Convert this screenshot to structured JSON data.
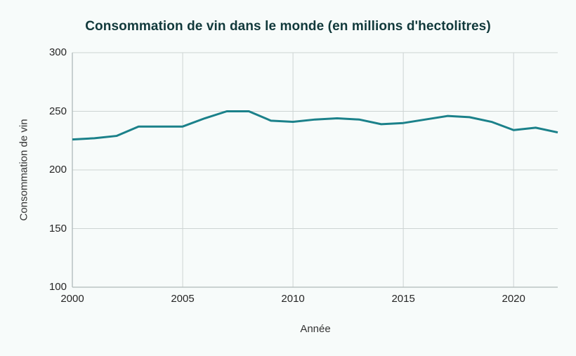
{
  "page": {
    "background": "#f7fbfa"
  },
  "chart_data": {
    "type": "line",
    "title": "Consommation de vin dans le monde (en millions d'hectolitres)",
    "xlabel": "Année",
    "ylabel": "Consommation de vin",
    "x": [
      2000,
      2001,
      2002,
      2003,
      2004,
      2005,
      2006,
      2007,
      2008,
      2009,
      2010,
      2011,
      2012,
      2013,
      2014,
      2015,
      2016,
      2017,
      2018,
      2019,
      2020,
      2021,
      2022
    ],
    "series": [
      {
        "name": "Consommation de vin",
        "values": [
          226,
          227,
          229,
          237,
          237,
          237,
          244,
          250,
          250,
          242,
          241,
          243,
          244,
          243,
          239,
          240,
          243,
          246,
          245,
          241,
          234,
          236,
          232
        ]
      }
    ],
    "xlim": [
      2000,
      2022
    ],
    "ylim": [
      100,
      300
    ],
    "xticks": [
      "2000",
      "2005",
      "2010",
      "2015",
      "2020"
    ],
    "yticks": [
      "100",
      "150",
      "200",
      "250",
      "300"
    ],
    "grid": true,
    "legend": "none",
    "colors": {
      "line": "#1b818a",
      "title": "#11393b",
      "grid": "#cdd4d3",
      "axis": "#b0bab9",
      "tick_text": "#262626",
      "axis_title_text": "#333333",
      "background": "#f7fbfa"
    }
  }
}
